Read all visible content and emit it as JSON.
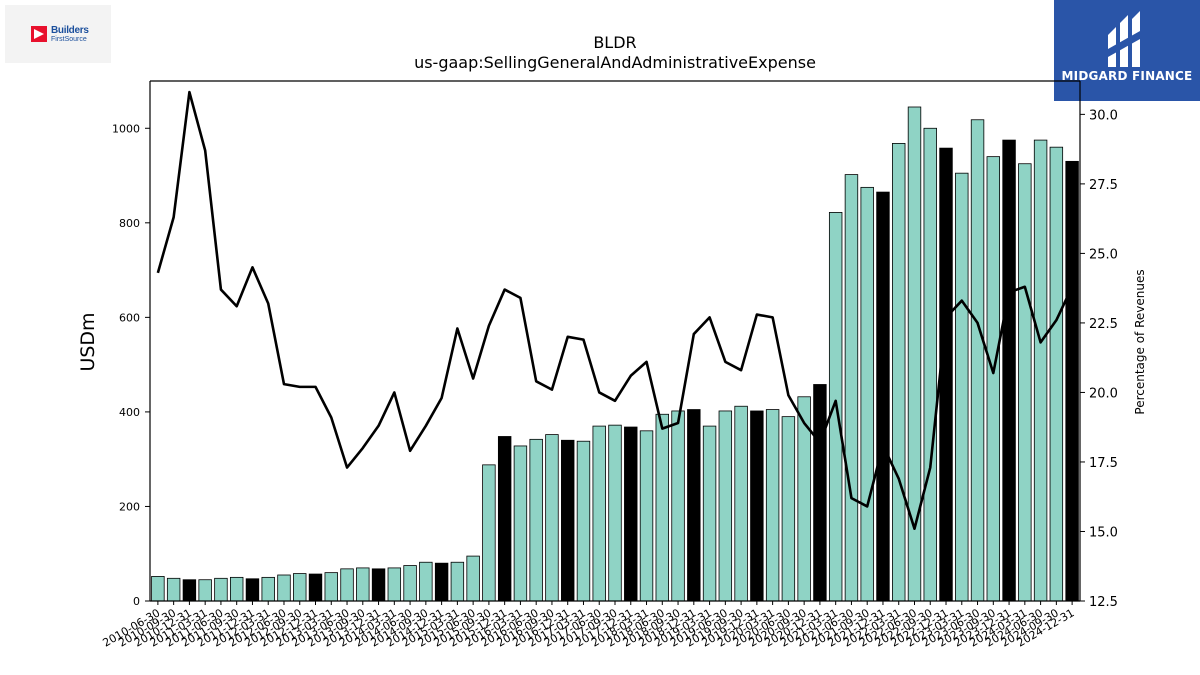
{
  "logos": {
    "left_line1": "Builders",
    "left_line2": "FirstSource",
    "right_brand": "MIDGARD FINANCE"
  },
  "colors": {
    "bar_fill": "#8fd3c5",
    "bar_highlight": "#000000",
    "bar_edge": "#000000",
    "line": "#000000",
    "brand_blue": "#2a55a8"
  },
  "chart_data": {
    "type": "bar",
    "title": "BLDR",
    "subtitle": "us-gaap:SellingGeneralAndAdministrativeExpense",
    "ylabel": "USDm",
    "y2label": "Percentage of Revenues",
    "ylim": [
      0,
      1100
    ],
    "y2lim": [
      12.5,
      31.2
    ],
    "yticks": [
      0,
      200,
      400,
      600,
      800,
      1000
    ],
    "y2ticks": [
      "12.5",
      "15.0",
      "17.5",
      "20.0",
      "22.5",
      "25.0",
      "27.5",
      "30.0"
    ],
    "categories": [
      "2010-06-30",
      "2010-09-30",
      "2010-12-31",
      "2011-03-31",
      "2011-06-30",
      "2011-09-30",
      "2011-12-31",
      "2012-03-31",
      "2012-06-30",
      "2012-09-30",
      "2012-12-31",
      "2013-03-31",
      "2013-06-30",
      "2013-09-30",
      "2013-12-31",
      "2014-03-31",
      "2014-06-30",
      "2014-09-30",
      "2014-12-31",
      "2015-03-31",
      "2015-06-30",
      "2015-09-30",
      "2015-12-31",
      "2016-03-31",
      "2016-06-30",
      "2016-09-30",
      "2016-12-31",
      "2017-03-31",
      "2017-06-30",
      "2017-09-30",
      "2017-12-31",
      "2018-03-31",
      "2018-06-30",
      "2018-09-30",
      "2018-12-31",
      "2019-03-31",
      "2019-06-30",
      "2019-09-30",
      "2019-12-31",
      "2020-03-31",
      "2020-06-30",
      "2020-09-30",
      "2020-12-31",
      "2021-03-31",
      "2021-06-30",
      "2021-09-30",
      "2021-12-31",
      "2022-03-31",
      "2022-06-30",
      "2022-09-30",
      "2022-12-31",
      "2023-03-31",
      "2023-06-30",
      "2023-09-30",
      "2023-12-31",
      "2024-03-31",
      "2024-06-30",
      "2024-09-30",
      "2024-12-31"
    ],
    "values": [
      52,
      48,
      45,
      45,
      48,
      50,
      47,
      50,
      55,
      58,
      57,
      60,
      68,
      70,
      68,
      70,
      75,
      82,
      80,
      82,
      95,
      288,
      348,
      328,
      342,
      352,
      340,
      338,
      370,
      372,
      368,
      360,
      395,
      402,
      405,
      370,
      402,
      412,
      402,
      405,
      390,
      432,
      458,
      822,
      902,
      875,
      865,
      968,
      1045,
      1000,
      958,
      905,
      1018,
      940,
      975,
      925,
      975,
      960,
      930
    ],
    "highlight": [
      false,
      false,
      true,
      false,
      false,
      false,
      true,
      false,
      false,
      false,
      true,
      false,
      false,
      false,
      true,
      false,
      false,
      false,
      true,
      false,
      false,
      false,
      true,
      false,
      false,
      false,
      true,
      false,
      false,
      false,
      true,
      false,
      false,
      false,
      true,
      false,
      false,
      false,
      true,
      false,
      false,
      false,
      true,
      false,
      false,
      false,
      true,
      false,
      false,
      false,
      true,
      false,
      false,
      false,
      true,
      false,
      false,
      false,
      true
    ],
    "pct_of_revenues": [
      24.3,
      26.3,
      30.8,
      28.7,
      23.7,
      23.1,
      24.5,
      23.2,
      20.3,
      20.2,
      20.2,
      19.1,
      17.3,
      18.0,
      18.8,
      20.0,
      17.9,
      18.8,
      19.8,
      22.3,
      20.5,
      22.4,
      23.7,
      23.4,
      20.4,
      20.1,
      22.0,
      21.9,
      20.0,
      19.7,
      20.6,
      21.1,
      18.7,
      18.9,
      22.1,
      22.7,
      21.1,
      20.8,
      22.8,
      22.7,
      19.9,
      18.9,
      18.2,
      19.7,
      16.2,
      15.9,
      18.1,
      16.9,
      15.1,
      17.3,
      22.7,
      23.3,
      22.5,
      20.7,
      23.6,
      23.8,
      21.8,
      22.6,
      23.8
    ]
  }
}
